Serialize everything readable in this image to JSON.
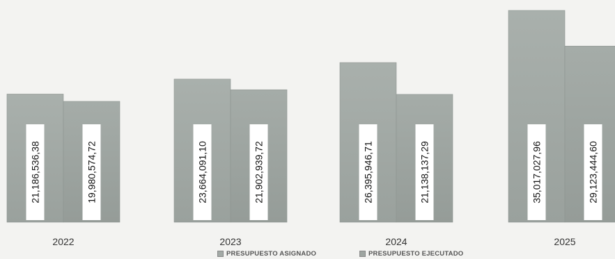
{
  "chart_data": {
    "type": "bar",
    "categories": [
      "2022",
      "2023",
      "2024",
      "2025"
    ],
    "series": [
      {
        "name": "PRESUPUESTO ASIGNADO",
        "values": [
          21186536.38,
          23664091.1,
          26395946.71,
          35017027.96
        ],
        "labels": [
          "21,186,536,38",
          "23,664,091,10",
          "26,395,946,71",
          "35,017,027,96"
        ],
        "color": "#a3aaa6"
      },
      {
        "name": "PRESUPUESTO EJECUTADO",
        "values": [
          19980574.72,
          21902939.72,
          21138137.29,
          29123444.6
        ],
        "labels": [
          "19,980,574,72",
          "21,902,939,72",
          "21,138,137,29",
          "29,123,444,60"
        ],
        "color": "#9ea5a1"
      }
    ],
    "title": "",
    "xlabel": "",
    "ylabel": "",
    "legend_position": "bottom",
    "grid": false
  }
}
